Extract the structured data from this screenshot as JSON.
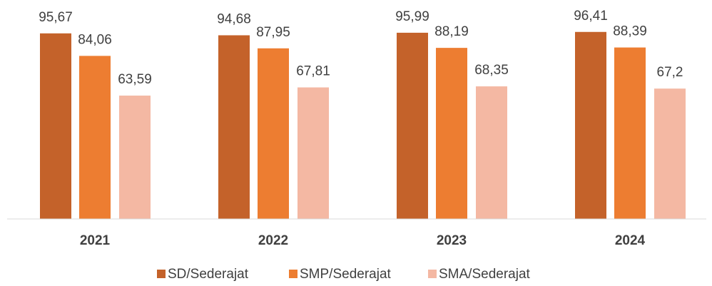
{
  "chart_data": {
    "type": "bar",
    "categories": [
      "2021",
      "2022",
      "2023",
      "2024"
    ],
    "series": [
      {
        "name": "SD/Sederajat",
        "color": "#c4622a",
        "values": [
          95.67,
          94.68,
          95.99,
          96.41
        ],
        "value_labels": [
          "95,67",
          "94,68",
          "95,99",
          "96,41"
        ]
      },
      {
        "name": "SMP/Sederajat",
        "color": "#ed7d31",
        "values": [
          84.06,
          87.95,
          88.19,
          88.39
        ],
        "value_labels": [
          "84,06",
          "87,95",
          "88,19",
          "88,39"
        ]
      },
      {
        "name": "SMA/Sederajat",
        "color": "#f4b8a3",
        "values": [
          63.59,
          67.81,
          68.35,
          67.2
        ],
        "value_labels": [
          "63,59",
          "67,81",
          "68,35",
          "67,2"
        ]
      }
    ],
    "ylim": [
      0,
      100
    ]
  }
}
